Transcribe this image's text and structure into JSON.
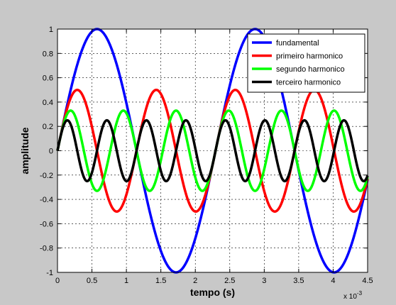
{
  "chart_data": {
    "type": "line",
    "title": "",
    "xlabel": "tempo (s)",
    "ylabel": "amplitude",
    "x_exponent_label": "x 10",
    "x_exponent_power": "-3",
    "xlim": [
      0,
      4.5
    ],
    "ylim": [
      -1,
      1
    ],
    "x_ticks": [
      "0",
      "0.5",
      "1",
      "1.5",
      "2",
      "2.5",
      "3",
      "3.5",
      "4",
      "4.5"
    ],
    "y_ticks": [
      "1",
      "0.8",
      "0.6",
      "0.4",
      "0.2",
      "0",
      "-0.2",
      "-0.4",
      "-0.6",
      "-0.8",
      "-1"
    ],
    "grid": true,
    "legend_position": "top-right",
    "x_unit_scale": 0.001,
    "series": [
      {
        "name": "fundamental",
        "color": "#0000ff",
        "amplitude": 1.0,
        "frequency_hz": 436,
        "phase": 0
      },
      {
        "name": "primeiro harmonico",
        "color": "#ff0000",
        "amplitude": 0.5,
        "frequency_hz": 872,
        "phase": 0
      },
      {
        "name": "segundo harmonico",
        "color": "#00ff00",
        "amplitude": 0.33,
        "frequency_hz": 1308,
        "phase": 0
      },
      {
        "name": "terceiro harmonico",
        "color": "#000000",
        "amplitude": 0.25,
        "frequency_hz": 1744,
        "phase": 0
      }
    ]
  }
}
